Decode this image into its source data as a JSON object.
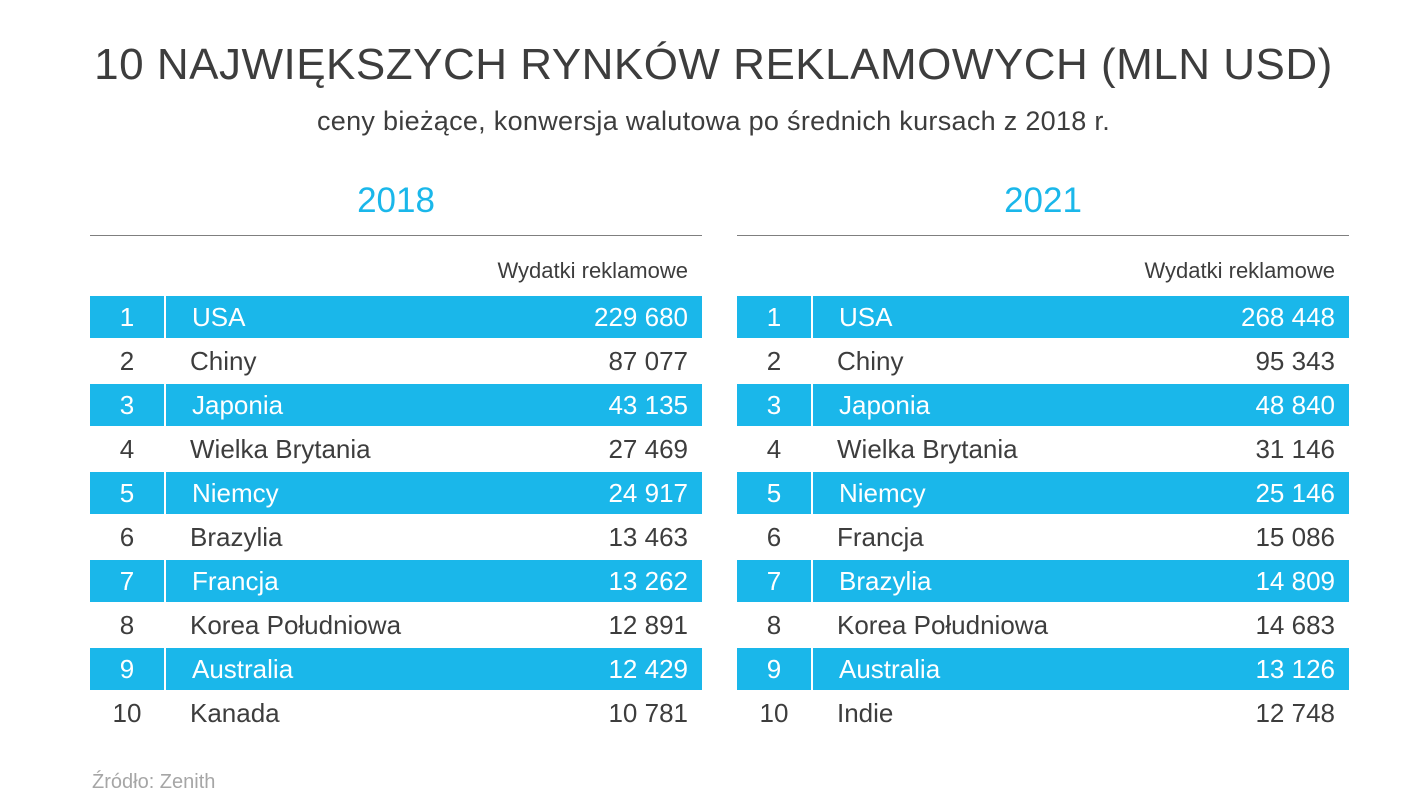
{
  "title": "10 NAJWIĘKSZYCH RYNKÓW REKLAMOWYCH (MLN USD)",
  "subtitle": "ceny bieżące,  konwersja walutowa po średnich kursach z 2018 r.",
  "source": "Źródło: Zenith",
  "colors": {
    "accent": "#1ab7ea",
    "title_text": "#3d3d3d",
    "highlight_row_text": "#ffffff",
    "source_text": "#a6a6a6"
  },
  "tables": [
    {
      "year": "2018",
      "value_header": "Wydatki reklamowe",
      "rows": [
        {
          "rank": "1",
          "country": "USA",
          "value": "229 680",
          "highlight": true
        },
        {
          "rank": "2",
          "country": "Chiny",
          "value": "87 077",
          "highlight": false
        },
        {
          "rank": "3",
          "country": "Japonia",
          "value": "43 135",
          "highlight": true
        },
        {
          "rank": "4",
          "country": "Wielka Brytania",
          "value": "27 469",
          "highlight": false
        },
        {
          "rank": "5",
          "country": "Niemcy",
          "value": "24 917",
          "highlight": true
        },
        {
          "rank": "6",
          "country": "Brazylia",
          "value": "13 463",
          "highlight": false
        },
        {
          "rank": "7",
          "country": "Francja",
          "value": "13 262",
          "highlight": true
        },
        {
          "rank": "8",
          "country": "Korea Południowa",
          "value": "12 891",
          "highlight": false
        },
        {
          "rank": "9",
          "country": "Australia",
          "value": "12 429",
          "highlight": true
        },
        {
          "rank": "10",
          "country": "Kanada",
          "value": "10 781",
          "highlight": false
        }
      ]
    },
    {
      "year": "2021",
      "value_header": "Wydatki reklamowe",
      "rows": [
        {
          "rank": "1",
          "country": "USA",
          "value": "268 448",
          "highlight": true
        },
        {
          "rank": "2",
          "country": "Chiny",
          "value": "95 343",
          "highlight": false
        },
        {
          "rank": "3",
          "country": "Japonia",
          "value": "48 840",
          "highlight": true
        },
        {
          "rank": "4",
          "country": "Wielka Brytania",
          "value": "31 146",
          "highlight": false
        },
        {
          "rank": "5",
          "country": "Niemcy",
          "value": "25 146",
          "highlight": true
        },
        {
          "rank": "6",
          "country": "Francja",
          "value": "15 086",
          "highlight": false
        },
        {
          "rank": "7",
          "country": "Brazylia",
          "value": "14 809",
          "highlight": true
        },
        {
          "rank": "8",
          "country": "Korea Południowa",
          "value": "14 683",
          "highlight": false
        },
        {
          "rank": "9",
          "country": "Australia",
          "value": "13 126",
          "highlight": true
        },
        {
          "rank": "10",
          "country": "Indie",
          "value": "12 748",
          "highlight": false
        }
      ]
    }
  ],
  "chart_data": [
    {
      "type": "table",
      "title": "2018",
      "columns": [
        "Pozycja",
        "Kraj",
        "Wydatki reklamowe"
      ],
      "rows": [
        [
          1,
          "USA",
          229680
        ],
        [
          2,
          "Chiny",
          87077
        ],
        [
          3,
          "Japonia",
          43135
        ],
        [
          4,
          "Wielka Brytania",
          27469
        ],
        [
          5,
          "Niemcy",
          24917
        ],
        [
          6,
          "Brazylia",
          13463
        ],
        [
          7,
          "Francja",
          13262
        ],
        [
          8,
          "Korea Południowa",
          12891
        ],
        [
          9,
          "Australia",
          12429
        ],
        [
          10,
          "Kanada",
          10781
        ]
      ]
    },
    {
      "type": "table",
      "title": "2021",
      "columns": [
        "Pozycja",
        "Kraj",
        "Wydatki reklamowe"
      ],
      "rows": [
        [
          1,
          "USA",
          268448
        ],
        [
          2,
          "Chiny",
          95343
        ],
        [
          3,
          "Japonia",
          48840
        ],
        [
          4,
          "Wielka Brytania",
          31146
        ],
        [
          5,
          "Niemcy",
          25146
        ],
        [
          6,
          "Francja",
          15086
        ],
        [
          7,
          "Brazylia",
          14809
        ],
        [
          8,
          "Korea Południowa",
          14683
        ],
        [
          9,
          "Australia",
          13126
        ],
        [
          10,
          "Indie",
          12748
        ]
      ]
    }
  ]
}
